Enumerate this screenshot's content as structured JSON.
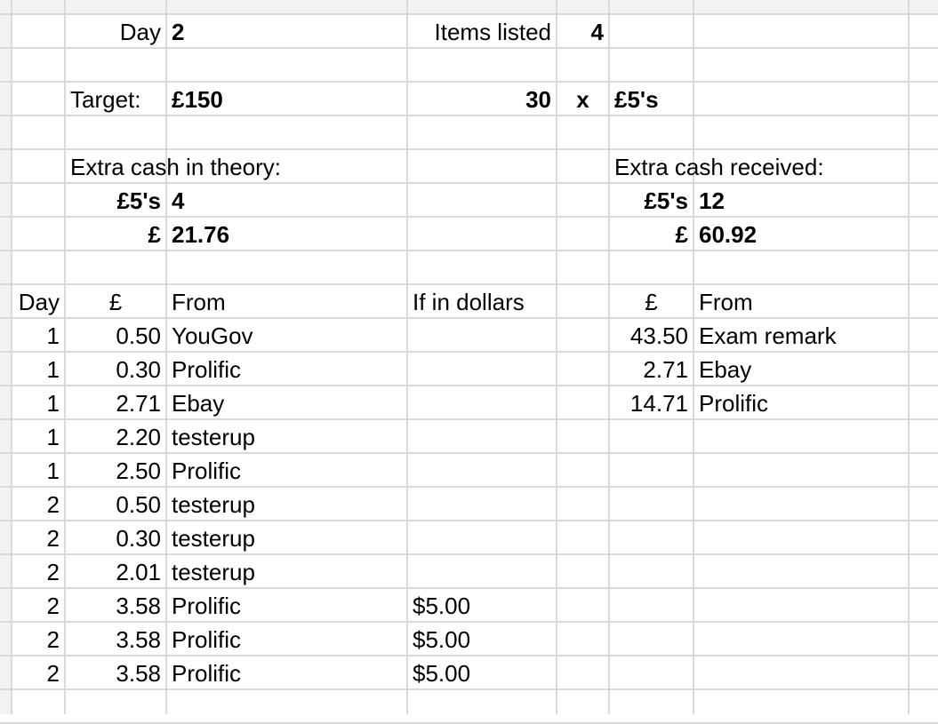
{
  "summary": {
    "day_label": "Day",
    "day_value": "2",
    "items_listed_label": "Items listed",
    "items_listed_value": "4",
    "target_label": "Target:",
    "target_value": "£150",
    "fives_count": "30",
    "times": "x",
    "fives_label": "£5's",
    "theory": {
      "title": "Extra cash in theory:",
      "fives_label": "£5's",
      "fives_value": "4",
      "pound_label": "£",
      "pound_value": "21.76"
    },
    "received": {
      "title": "Extra cash received:",
      "fives_label": "£5's",
      "fives_value": "12",
      "pound_label": "£",
      "pound_value": "60.92"
    }
  },
  "theory_table": {
    "headers": {
      "day": "Day",
      "amount": "£",
      "from": "From",
      "dollars": "If in dollars"
    },
    "rows": [
      {
        "day": "1",
        "amount": "0.50",
        "from": "YouGov",
        "dollars": ""
      },
      {
        "day": "1",
        "amount": "0.30",
        "from": "Prolific",
        "dollars": ""
      },
      {
        "day": "1",
        "amount": "2.71",
        "from": "Ebay",
        "dollars": ""
      },
      {
        "day": "1",
        "amount": "2.20",
        "from": "testerup",
        "dollars": ""
      },
      {
        "day": "1",
        "amount": "2.50",
        "from": "Prolific",
        "dollars": ""
      },
      {
        "day": "2",
        "amount": "0.50",
        "from": "testerup",
        "dollars": ""
      },
      {
        "day": "2",
        "amount": "0.30",
        "from": "testerup",
        "dollars": ""
      },
      {
        "day": "2",
        "amount": "2.01",
        "from": "testerup",
        "dollars": ""
      },
      {
        "day": "2",
        "amount": "3.58",
        "from": "Prolific",
        "dollars": "$5.00"
      },
      {
        "day": "2",
        "amount": "3.58",
        "from": "Prolific",
        "dollars": "$5.00"
      },
      {
        "day": "2",
        "amount": "3.58",
        "from": "Prolific",
        "dollars": "$5.00"
      }
    ]
  },
  "received_table": {
    "headers": {
      "amount": "£",
      "from": "From"
    },
    "rows": [
      {
        "amount": "43.50",
        "from": "Exam remark"
      },
      {
        "amount": "2.71",
        "from": "Ebay"
      },
      {
        "amount": "14.71",
        "from": "Prolific"
      }
    ]
  },
  "colors": {
    "gridline": "#dadada",
    "header_bg": "#f3f3f3"
  }
}
